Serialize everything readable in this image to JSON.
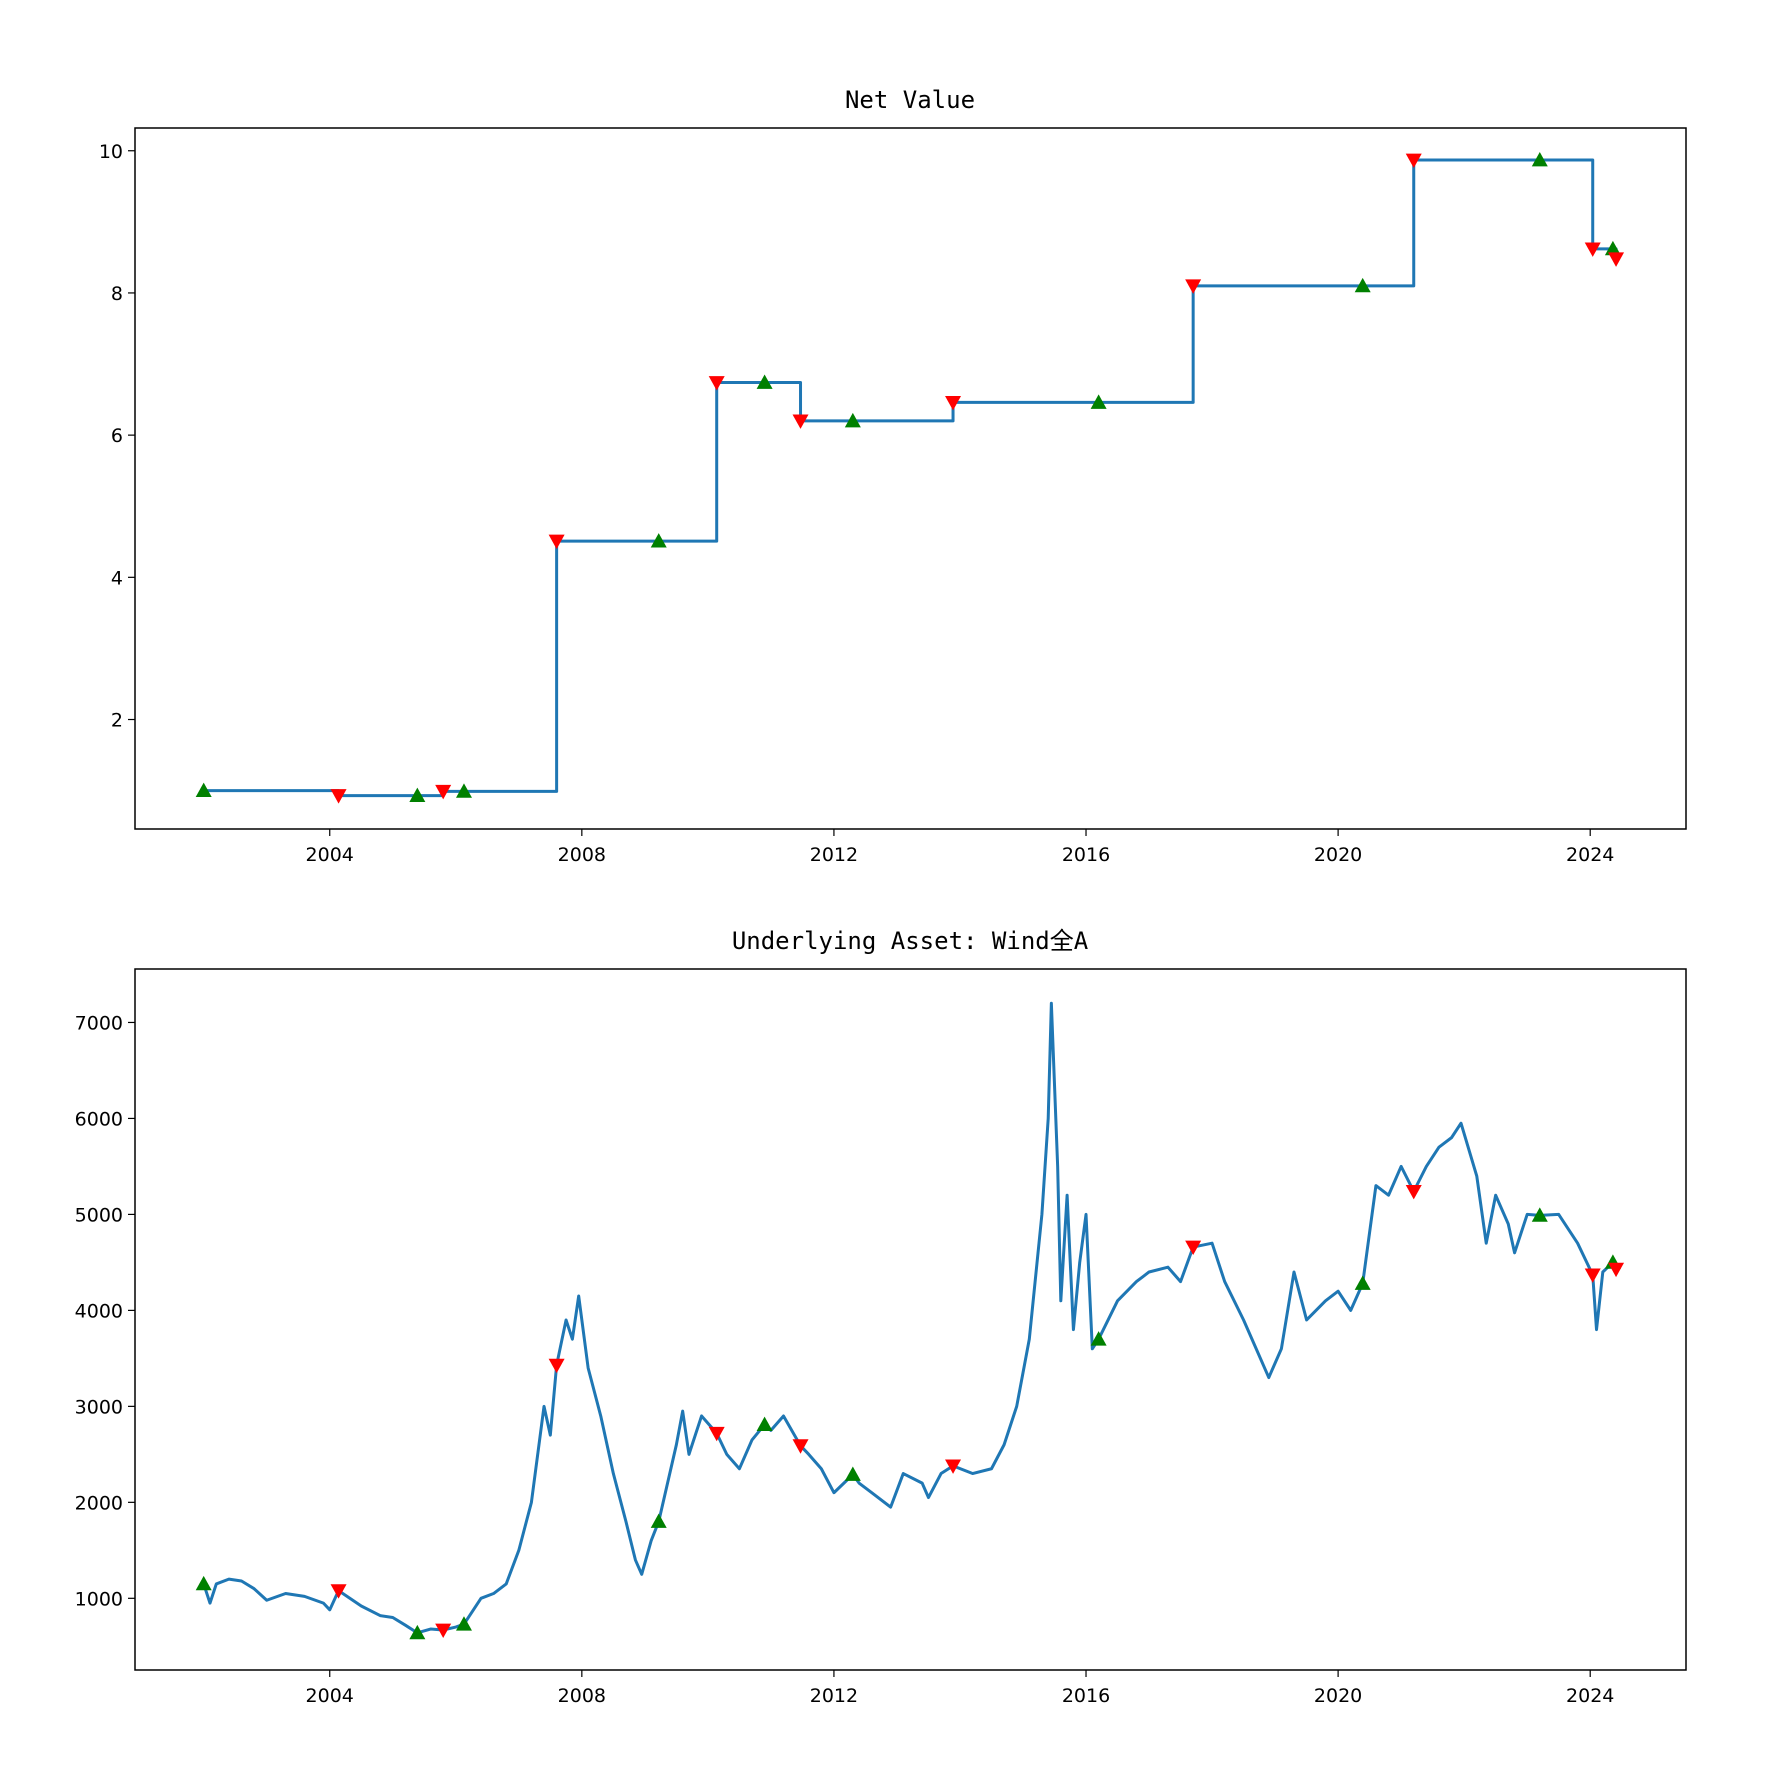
{
  "chart_data": [
    {
      "type": "line",
      "title": "Net Value",
      "xlabel": "",
      "ylabel": "",
      "xlim": [
        2000.91,
        2025.52
      ],
      "ylim": [
        0.46,
        10.32
      ],
      "xticks": [
        2004,
        2008,
        2012,
        2016,
        2020,
        2024
      ],
      "yticks": [
        2,
        4,
        6,
        8,
        10
      ],
      "grid": false,
      "line_color": "#1f77b4",
      "series": [
        {
          "name": "Net Value",
          "step": true,
          "x": [
            2002.0,
            2004.14,
            2005.8,
            2007.6,
            2010.14,
            2011.47,
            2013.89,
            2017.7,
            2021.2,
            2024.04,
            2024.41
          ],
          "y": [
            1.0,
            0.93,
            0.99,
            4.51,
            6.74,
            6.2,
            6.46,
            8.1,
            9.87,
            8.62,
            8.48
          ]
        }
      ],
      "buy_markers": {
        "color": "#008000",
        "x": [
          2002.0,
          2005.39,
          2006.13,
          2009.22,
          2010.9,
          2012.3,
          2016.2,
          2020.39,
          2023.2,
          2024.36
        ],
        "y": [
          1.0,
          0.93,
          0.99,
          4.51,
          6.74,
          6.2,
          6.46,
          8.1,
          9.87,
          8.62
        ]
      },
      "sell_markers": {
        "color": "#ff0000",
        "x": [
          2004.14,
          2005.8,
          2007.6,
          2010.14,
          2011.47,
          2013.89,
          2017.7,
          2021.2,
          2024.04,
          2024.41
        ],
        "y": [
          0.93,
          0.99,
          4.51,
          6.74,
          6.2,
          6.46,
          8.1,
          9.87,
          8.62,
          8.48
        ]
      }
    },
    {
      "type": "line",
      "title": "Underlying Asset: Wind全A",
      "xlabel": "",
      "ylabel": "",
      "xlim": [
        2000.91,
        2025.52
      ],
      "ylim": [
        253,
        7557
      ],
      "xticks": [
        2004,
        2008,
        2012,
        2016,
        2020,
        2024
      ],
      "yticks": [
        1000,
        2000,
        3000,
        4000,
        5000,
        6000,
        7000
      ],
      "grid": false,
      "line_color": "#1f77b4",
      "series": [
        {
          "name": "Wind全A",
          "x": [
            2002.0,
            2002.1,
            2002.2,
            2002.4,
            2002.6,
            2002.8,
            2003.0,
            2003.3,
            2003.6,
            2003.9,
            2004.0,
            2004.14,
            2004.5,
            2004.8,
            2005.0,
            2005.2,
            2005.39,
            2005.6,
            2005.8,
            2006.0,
            2006.13,
            2006.4,
            2006.6,
            2006.8,
            2007.0,
            2007.2,
            2007.4,
            2007.5,
            2007.6,
            2007.75,
            2007.85,
            2007.95,
            2008.1,
            2008.3,
            2008.5,
            2008.7,
            2008.85,
            2008.95,
            2009.1,
            2009.22,
            2009.5,
            2009.6,
            2009.7,
            2009.9,
            2010.14,
            2010.3,
            2010.5,
            2010.7,
            2010.9,
            2011.0,
            2011.2,
            2011.47,
            2011.6,
            2011.8,
            2012.0,
            2012.3,
            2012.4,
            2012.6,
            2012.9,
            2013.1,
            2013.4,
            2013.5,
            2013.7,
            2013.89,
            2014.2,
            2014.5,
            2014.7,
            2014.9,
            2015.1,
            2015.3,
            2015.4,
            2015.45,
            2015.55,
            2015.6,
            2015.7,
            2015.8,
            2015.9,
            2016.0,
            2016.1,
            2016.2,
            2016.5,
            2016.8,
            2017.0,
            2017.3,
            2017.5,
            2017.7,
            2018.0,
            2018.2,
            2018.5,
            2018.7,
            2018.9,
            2019.1,
            2019.3,
            2019.5,
            2019.8,
            2020.0,
            2020.2,
            2020.39,
            2020.6,
            2020.8,
            2021.0,
            2021.2,
            2021.4,
            2021.6,
            2021.8,
            2021.95,
            2022.2,
            2022.35,
            2022.5,
            2022.7,
            2022.8,
            2023.0,
            2023.2,
            2023.5,
            2023.8,
            2024.04,
            2024.1,
            2024.2,
            2024.36,
            2024.41
          ],
          "y": [
            1150,
            950,
            1150,
            1200,
            1180,
            1100,
            980,
            1050,
            1020,
            950,
            880,
            1080,
            920,
            820,
            800,
            720,
            640,
            680,
            670,
            700,
            730,
            1000,
            1050,
            1150,
            1500,
            2000,
            3000,
            2700,
            3430,
            3900,
            3700,
            4150,
            3400,
            2900,
            2300,
            1800,
            1400,
            1250,
            1600,
            1800,
            2600,
            2950,
            2500,
            2900,
            2720,
            2500,
            2350,
            2650,
            2810,
            2750,
            2900,
            2590,
            2500,
            2350,
            2100,
            2290,
            2200,
            2100,
            1950,
            2300,
            2200,
            2050,
            2300,
            2380,
            2300,
            2350,
            2600,
            3000,
            3700,
            5000,
            6000,
            7200,
            5500,
            4100,
            5200,
            3800,
            4500,
            5000,
            3600,
            3700,
            4100,
            4300,
            4400,
            4450,
            4300,
            4660,
            4700,
            4300,
            3900,
            3600,
            3300,
            3600,
            4400,
            3900,
            4100,
            4200,
            4000,
            4280,
            5300,
            5200,
            5500,
            5240,
            5500,
            5700,
            5800,
            5950,
            5400,
            4700,
            5200,
            4900,
            4600,
            5000,
            4990,
            5000,
            4700,
            4370,
            3800,
            4400,
            4500,
            4430
          ]
        }
      ],
      "buy_markers": {
        "color": "#008000",
        "x": [
          2002.0,
          2005.39,
          2006.13,
          2009.22,
          2010.9,
          2012.3,
          2016.2,
          2020.39,
          2023.2,
          2024.36
        ],
        "y": [
          1150,
          640,
          730,
          1800,
          2810,
          2290,
          3700,
          4280,
          4990,
          4500
        ]
      },
      "sell_markers": {
        "color": "#ff0000",
        "x": [
          2004.14,
          2005.8,
          2007.6,
          2010.14,
          2011.47,
          2013.89,
          2017.7,
          2021.2,
          2024.04,
          2024.41
        ],
        "y": [
          1080,
          670,
          3430,
          2720,
          2590,
          2380,
          4660,
          5240,
          4370,
          4430
        ]
      }
    }
  ]
}
